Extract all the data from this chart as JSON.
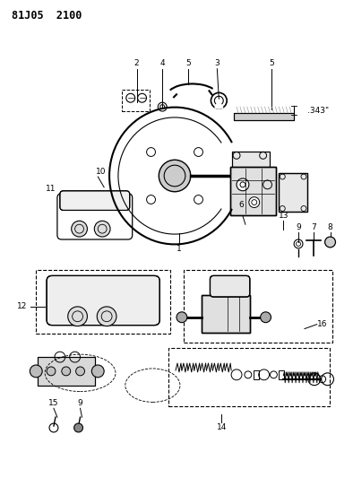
{
  "title": "81J05 2100",
  "bg_color": "#ffffff",
  "fig_width": 3.94,
  "fig_height": 5.33,
  "dpi": 100
}
